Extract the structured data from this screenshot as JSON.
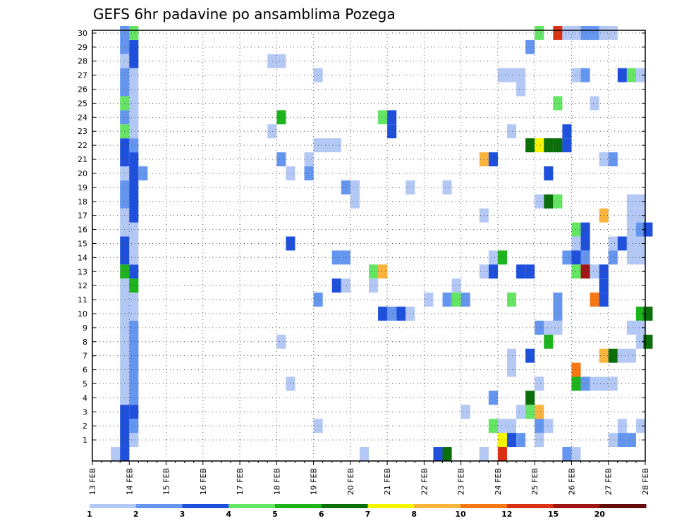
{
  "chart_data": {
    "type": "heatmap",
    "title": "GEFS 6hr padavine po ansamblima Pozega",
    "x_tick_labels": [
      "13 FEB",
      "14 FEB",
      "15 FEB",
      "16 FEB",
      "17 FEB",
      "18 FEB",
      "19 FEB",
      "20 FEB",
      "21 FEB",
      "22 FEB",
      "23 FEB",
      "24 FEB",
      "25 FEB",
      "26 FEB",
      "27 FEB",
      "28 FEB"
    ],
    "y_tick_labels": [
      "1",
      "2",
      "3",
      "4",
      "5",
      "6",
      "7",
      "8",
      "9",
      "10",
      "11",
      "12",
      "13",
      "14",
      "15",
      "16",
      "17",
      "18",
      "19",
      "20",
      "21",
      "22",
      "23",
      "24",
      "25",
      "26",
      "27",
      "28",
      "29",
      "30"
    ],
    "x_range_days": [
      13,
      28
    ],
    "y_range_members": [
      0,
      30
    ],
    "grid": true,
    "colorbar": {
      "labels": [
        "1",
        "2",
        "3",
        "4",
        "5",
        "6",
        "7",
        "8",
        "10",
        "12",
        "15",
        "20"
      ],
      "colors": [
        "#b4c8f5",
        "#6496f0",
        "#1e50dc",
        "#64e664",
        "#1eb41e",
        "#0a6e0a",
        "#f5f500",
        "#fab43c",
        "#f57814",
        "#dc3214",
        "#a01414",
        "#640a0a"
      ]
    },
    "cell_hours": 6,
    "cells": [
      [
        13.5,
        0,
        0,
        "#b4c8f5"
      ],
      [
        13.75,
        0,
        0,
        "#1e50dc"
      ],
      [
        13.75,
        1,
        3,
        "#1e50dc"
      ],
      [
        13.75,
        4,
        12,
        "#b4c8f5"
      ],
      [
        13.75,
        13,
        13,
        "#1eb41e"
      ],
      [
        13.75,
        14,
        15,
        "#1e50dc"
      ],
      [
        13.75,
        16,
        17,
        "#b4c8f5"
      ],
      [
        13.75,
        18,
        19,
        "#6496f0"
      ],
      [
        13.75,
        20,
        20,
        "#b4c8f5"
      ],
      [
        13.75,
        21,
        22,
        "#1e50dc"
      ],
      [
        13.75,
        23,
        23,
        "#64e664"
      ],
      [
        13.75,
        24,
        24,
        "#6496f0"
      ],
      [
        13.75,
        25,
        25,
        "#64e664"
      ],
      [
        13.75,
        26,
        27,
        "#6496f0"
      ],
      [
        13.75,
        28,
        28,
        "#b4c8f5"
      ],
      [
        13.75,
        29,
        30,
        "#6496f0"
      ],
      [
        14.0,
        1,
        1,
        "#b4c8f5"
      ],
      [
        14.0,
        2,
        2,
        "#6496f0"
      ],
      [
        14.0,
        3,
        3,
        "#1e50dc"
      ],
      [
        14.0,
        4,
        9,
        "#6496f0"
      ],
      [
        14.0,
        10,
        10,
        "#b4c8f5"
      ],
      [
        14.0,
        11,
        11,
        "#b4c8f5"
      ],
      [
        14.0,
        12,
        12,
        "#1eb41e"
      ],
      [
        14.0,
        13,
        13,
        "#1e50dc"
      ],
      [
        14.0,
        14,
        16,
        "#b4c8f5"
      ],
      [
        14.0,
        17,
        21,
        "#1e50dc"
      ],
      [
        14.0,
        22,
        22,
        "#6496f0"
      ],
      [
        14.0,
        23,
        27,
        "#b4c8f5"
      ],
      [
        14.0,
        28,
        29,
        "#1e50dc"
      ],
      [
        14.0,
        30,
        30,
        "#64e664"
      ],
      [
        14.25,
        20,
        20,
        "#6496f0"
      ],
      [
        17.75,
        28,
        28,
        "#b4c8f5"
      ],
      [
        17.75,
        23,
        23,
        "#b4c8f5"
      ],
      [
        18.0,
        28,
        28,
        "#b4c8f5"
      ],
      [
        18.0,
        24,
        24,
        "#1eb41e"
      ],
      [
        18.0,
        21,
        21,
        "#6496f0"
      ],
      [
        18.0,
        8,
        8,
        "#b4c8f5"
      ],
      [
        18.25,
        20,
        20,
        "#b4c8f5"
      ],
      [
        18.25,
        15,
        15,
        "#1e50dc"
      ],
      [
        18.25,
        5,
        5,
        "#b4c8f5"
      ],
      [
        18.75,
        21,
        21,
        "#b4c8f5"
      ],
      [
        18.75,
        20,
        20,
        "#6496f0"
      ],
      [
        19.0,
        27,
        27,
        "#b4c8f5"
      ],
      [
        19.0,
        22,
        22,
        "#b4c8f5"
      ],
      [
        19.0,
        11,
        11,
        "#6496f0"
      ],
      [
        19.0,
        2,
        2,
        "#b4c8f5"
      ],
      [
        19.25,
        22,
        22,
        "#b4c8f5"
      ],
      [
        19.5,
        22,
        22,
        "#b4c8f5"
      ],
      [
        19.5,
        14,
        14,
        "#6496f0"
      ],
      [
        19.5,
        12,
        12,
        "#1e50dc"
      ],
      [
        19.75,
        19,
        19,
        "#6496f0"
      ],
      [
        19.75,
        14,
        14,
        "#6496f0"
      ],
      [
        19.75,
        12,
        12,
        "#b4c8f5"
      ],
      [
        20.0,
        19,
        19,
        "#b4c8f5"
      ],
      [
        20.0,
        18,
        18,
        "#b4c8f5"
      ],
      [
        20.25,
        0,
        0,
        "#b4c8f5"
      ],
      [
        20.5,
        13,
        13,
        "#64e664"
      ],
      [
        20.5,
        12,
        12,
        "#b4c8f5"
      ],
      [
        20.75,
        24,
        24,
        "#64e664"
      ],
      [
        20.75,
        13,
        13,
        "#fab43c"
      ],
      [
        20.75,
        10,
        10,
        "#1e50dc"
      ],
      [
        21.0,
        24,
        24,
        "#1e50dc"
      ],
      [
        21.0,
        23,
        23,
        "#1e50dc"
      ],
      [
        21.0,
        10,
        10,
        "#6496f0"
      ],
      [
        21.25,
        10,
        10,
        "#1e50dc"
      ],
      [
        21.5,
        19,
        19,
        "#b4c8f5"
      ],
      [
        21.5,
        10,
        10,
        "#b4c8f5"
      ],
      [
        22.0,
        11,
        11,
        "#b4c8f5"
      ],
      [
        22.25,
        0,
        0,
        "#1e50dc"
      ],
      [
        22.5,
        19,
        19,
        "#b4c8f5"
      ],
      [
        22.5,
        11,
        11,
        "#6496f0"
      ],
      [
        22.5,
        0,
        0,
        "#0a6e0a"
      ],
      [
        22.75,
        12,
        12,
        "#b4c8f5"
      ],
      [
        22.75,
        11,
        11,
        "#64e664"
      ],
      [
        23.0,
        11,
        11,
        "#6496f0"
      ],
      [
        23.0,
        3,
        3,
        "#b4c8f5"
      ],
      [
        23.5,
        21,
        21,
        "#fab43c"
      ],
      [
        23.5,
        17,
        17,
        "#b4c8f5"
      ],
      [
        23.5,
        13,
        13,
        "#b4c8f5"
      ],
      [
        23.5,
        0,
        0,
        "#b4c8f5"
      ],
      [
        23.75,
        21,
        21,
        "#1e50dc"
      ],
      [
        23.75,
        14,
        14,
        "#b4c8f5"
      ],
      [
        23.75,
        13,
        13,
        "#1e50dc"
      ],
      [
        23.75,
        4,
        4,
        "#6496f0"
      ],
      [
        23.75,
        2,
        2,
        "#64e664"
      ],
      [
        24.0,
        27,
        27,
        "#b4c8f5"
      ],
      [
        24.0,
        14,
        14,
        "#1eb41e"
      ],
      [
        24.0,
        2,
        2,
        "#b4c8f5"
      ],
      [
        24.0,
        1,
        1,
        "#f5f500"
      ],
      [
        24.0,
        0,
        0,
        "#dc3214"
      ],
      [
        24.25,
        27,
        27,
        "#b4c8f5"
      ],
      [
        24.25,
        23,
        23,
        "#b4c8f5"
      ],
      [
        24.25,
        11,
        11,
        "#64e664"
      ],
      [
        24.25,
        7,
        7,
        "#b4c8f5"
      ],
      [
        24.25,
        6,
        6,
        "#b4c8f5"
      ],
      [
        24.25,
        2,
        2,
        "#b4c8f5"
      ],
      [
        24.25,
        1,
        1,
        "#1e50dc"
      ],
      [
        24.5,
        27,
        27,
        "#b4c8f5"
      ],
      [
        24.5,
        26,
        26,
        "#b4c8f5"
      ],
      [
        24.5,
        13,
        13,
        "#1e50dc"
      ],
      [
        24.5,
        3,
        3,
        "#b4c8f5"
      ],
      [
        24.5,
        1,
        1,
        "#6496f0"
      ],
      [
        24.75,
        29,
        29,
        "#6496f0"
      ],
      [
        24.75,
        22,
        22,
        "#0a6e0a"
      ],
      [
        24.75,
        13,
        13,
        "#1e50dc"
      ],
      [
        24.75,
        7,
        7,
        "#1e50dc"
      ],
      [
        24.75,
        4,
        4,
        "#0a6e0a"
      ],
      [
        24.75,
        3,
        3,
        "#64e664"
      ],
      [
        25.0,
        30,
        30,
        "#64e664"
      ],
      [
        25.0,
        22,
        22,
        "#f5f500"
      ],
      [
        25.0,
        18,
        18,
        "#b4c8f5"
      ],
      [
        25.0,
        9,
        9,
        "#6496f0"
      ],
      [
        25.0,
        5,
        5,
        "#b4c8f5"
      ],
      [
        25.0,
        3,
        3,
        "#fab43c"
      ],
      [
        25.0,
        2,
        2,
        "#6496f0"
      ],
      [
        25.0,
        1,
        1,
        "#b4c8f5"
      ],
      [
        25.25,
        22,
        22,
        "#0a6e0a"
      ],
      [
        25.25,
        20,
        20,
        "#1e50dc"
      ],
      [
        25.25,
        18,
        18,
        "#0a6e0a"
      ],
      [
        25.25,
        9,
        9,
        "#b4c8f5"
      ],
      [
        25.25,
        8,
        8,
        "#1eb41e"
      ],
      [
        25.25,
        2,
        2,
        "#b4c8f5"
      ],
      [
        25.5,
        30,
        30,
        "#dc3214"
      ],
      [
        25.5,
        25,
        25,
        "#64e664"
      ],
      [
        25.5,
        22,
        22,
        "#0a6e0a"
      ],
      [
        25.5,
        18,
        18,
        "#64e664"
      ],
      [
        25.5,
        11,
        11,
        "#6496f0"
      ],
      [
        25.5,
        10,
        10,
        "#6496f0"
      ],
      [
        25.5,
        9,
        9,
        "#b4c8f5"
      ],
      [
        25.75,
        30,
        30,
        "#b4c8f5"
      ],
      [
        25.75,
        23,
        23,
        "#1e50dc"
      ],
      [
        25.75,
        22,
        22,
        "#1e50dc"
      ],
      [
        25.75,
        14,
        14,
        "#6496f0"
      ],
      [
        25.75,
        0,
        0,
        "#6496f0"
      ],
      [
        26.0,
        30,
        30,
        "#b4c8f5"
      ],
      [
        26.0,
        27,
        27,
        "#b4c8f5"
      ],
      [
        26.0,
        16,
        16,
        "#64e664"
      ],
      [
        26.0,
        15,
        15,
        "#b4c8f5"
      ],
      [
        26.0,
        14,
        14,
        "#1e50dc"
      ],
      [
        26.0,
        13,
        13,
        "#64e664"
      ],
      [
        26.0,
        6,
        6,
        "#f57814"
      ],
      [
        26.0,
        5,
        5,
        "#1eb41e"
      ],
      [
        26.0,
        0,
        0,
        "#b4c8f5"
      ],
      [
        26.25,
        30,
        30,
        "#6496f0"
      ],
      [
        26.25,
        27,
        27,
        "#6496f0"
      ],
      [
        26.25,
        16,
        16,
        "#1e50dc"
      ],
      [
        26.25,
        15,
        15,
        "#1e50dc"
      ],
      [
        26.25,
        14,
        14,
        "#6496f0"
      ],
      [
        26.25,
        13,
        13,
        "#a01414"
      ],
      [
        26.25,
        5,
        5,
        "#6496f0"
      ],
      [
        26.5,
        30,
        30,
        "#6496f0"
      ],
      [
        26.5,
        25,
        25,
        "#b4c8f5"
      ],
      [
        26.5,
        13,
        13,
        "#b4c8f5"
      ],
      [
        26.5,
        11,
        11,
        "#f57814"
      ],
      [
        26.5,
        5,
        5,
        "#b4c8f5"
      ],
      [
        26.75,
        30,
        30,
        "#b4c8f5"
      ],
      [
        26.75,
        21,
        21,
        "#b4c8f5"
      ],
      [
        26.75,
        17,
        17,
        "#fab43c"
      ],
      [
        26.75,
        13,
        13,
        "#1e50dc"
      ],
      [
        26.75,
        12,
        12,
        "#1e50dc"
      ],
      [
        26.75,
        11,
        11,
        "#1e50dc"
      ],
      [
        26.75,
        7,
        7,
        "#fab43c"
      ],
      [
        26.75,
        5,
        5,
        "#b4c8f5"
      ],
      [
        27.0,
        30,
        30,
        "#b4c8f5"
      ],
      [
        27.0,
        21,
        21,
        "#6496f0"
      ],
      [
        27.0,
        15,
        15,
        "#b4c8f5"
      ],
      [
        27.0,
        14,
        14,
        "#6496f0"
      ],
      [
        27.0,
        7,
        7,
        "#0a6e0a"
      ],
      [
        27.0,
        5,
        5,
        "#b4c8f5"
      ],
      [
        27.0,
        1,
        1,
        "#b4c8f5"
      ],
      [
        27.25,
        27,
        27,
        "#1e50dc"
      ],
      [
        27.25,
        15,
        15,
        "#1e50dc"
      ],
      [
        27.25,
        7,
        7,
        "#b4c8f5"
      ],
      [
        27.25,
        2,
        2,
        "#b4c8f5"
      ],
      [
        27.25,
        1,
        1,
        "#6496f0"
      ],
      [
        27.5,
        27,
        27,
        "#64e664"
      ],
      [
        27.5,
        18,
        18,
        "#b4c8f5"
      ],
      [
        27.5,
        17,
        17,
        "#b4c8f5"
      ],
      [
        27.5,
        16,
        16,
        "#b4c8f5"
      ],
      [
        27.5,
        15,
        15,
        "#b4c8f5"
      ],
      [
        27.5,
        14,
        14,
        "#b4c8f5"
      ],
      [
        27.5,
        9,
        9,
        "#b4c8f5"
      ],
      [
        27.5,
        7,
        7,
        "#b4c8f5"
      ],
      [
        27.5,
        1,
        1,
        "#6496f0"
      ],
      [
        27.75,
        27,
        27,
        "#b4c8f5"
      ],
      [
        27.75,
        18,
        18,
        "#b4c8f5"
      ],
      [
        27.75,
        17,
        17,
        "#b4c8f5"
      ],
      [
        27.75,
        16,
        16,
        "#6496f0"
      ],
      [
        27.75,
        15,
        15,
        "#b4c8f5"
      ],
      [
        27.75,
        14,
        14,
        "#b4c8f5"
      ],
      [
        27.75,
        10,
        10,
        "#1eb41e"
      ],
      [
        27.75,
        9,
        9,
        "#b4c8f5"
      ],
      [
        27.75,
        8,
        8,
        "#b4c8f5"
      ],
      [
        27.75,
        2,
        2,
        "#b4c8f5"
      ],
      [
        27.95,
        16,
        16,
        "#1e50dc"
      ],
      [
        27.95,
        10,
        10,
        "#0a6e0a"
      ],
      [
        27.95,
        8,
        8,
        "#0a6e0a"
      ]
    ]
  }
}
